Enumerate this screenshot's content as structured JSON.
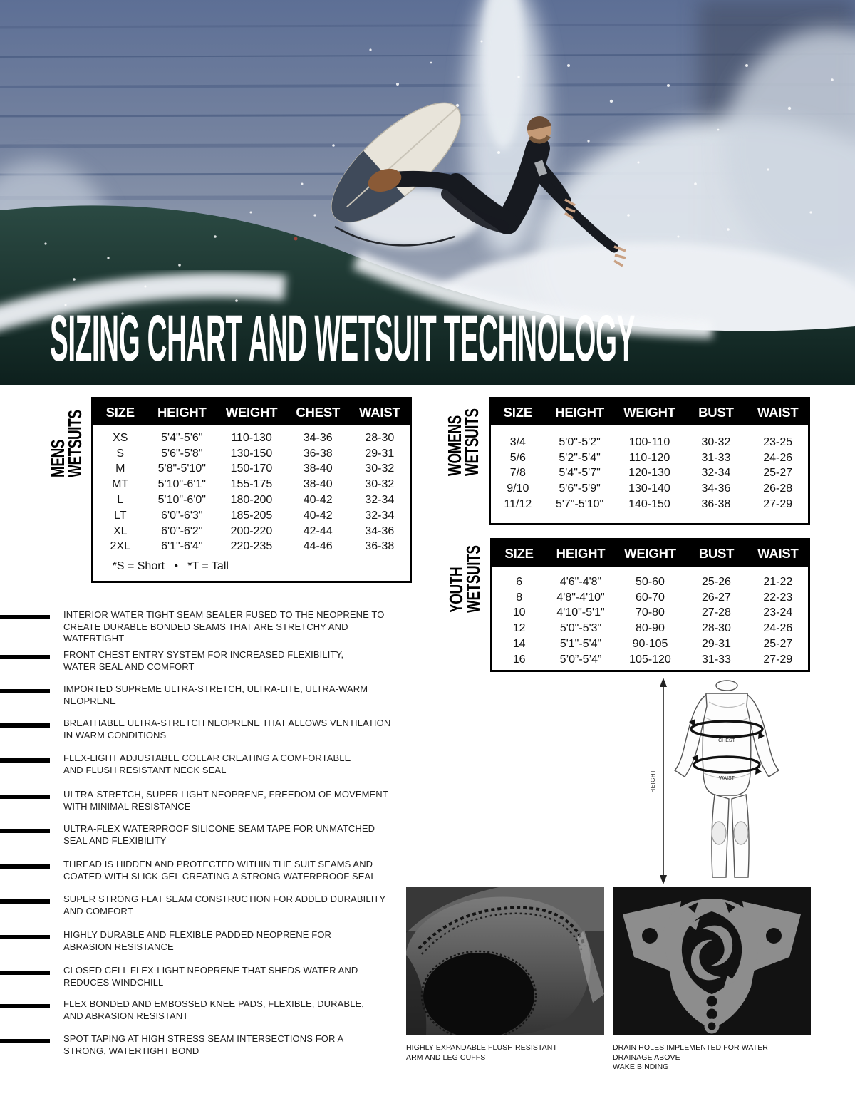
{
  "title": "SIZING CHART AND WETSUIT TECHNOLOGY",
  "colors": {
    "table_header_bg": "#000000",
    "table_header_text": "#ffffff",
    "table_border": "#000000",
    "feature_bar": "#000000",
    "ocean_blue": "#74829f",
    "wave_dark_teal": "#16302c",
    "spray_white": "#e8ecf0",
    "wetsuit_black": "#171a20",
    "logo_gray": "#8d8d8d"
  },
  "tables": {
    "mens": {
      "label": "MENS\nWETSUITS",
      "columns": [
        "SIZE",
        "HEIGHT",
        "WEIGHT",
        "CHEST",
        "WAIST"
      ],
      "rows": [
        [
          "XS",
          "5'4\"-5'6\"",
          "110-130",
          "34-36",
          "28-30"
        ],
        [
          "S",
          "5'6\"-5'8\"",
          "130-150",
          "36-38",
          "29-31"
        ],
        [
          "M",
          "5'8\"-5'10\"",
          "150-170",
          "38-40",
          "30-32"
        ],
        [
          "MT",
          "5'10\"-6'1\"",
          "155-175",
          "38-40",
          "30-32"
        ],
        [
          "L",
          "5'10\"-6'0\"",
          "180-200",
          "40-42",
          "32-34"
        ],
        [
          "LT",
          "6'0\"-6'3\"",
          "185-205",
          "40-42",
          "32-34"
        ],
        [
          "XL",
          "6'0\"-6'2\"",
          "200-220",
          "42-44",
          "34-36"
        ],
        [
          "2XL",
          "6'1\"-6'4\"",
          "220-235",
          "44-46",
          "36-38"
        ]
      ],
      "footnote": "*S = Short   •   *T = Tall"
    },
    "womens": {
      "label": "WOMENS\nWETSUITS",
      "columns": [
        "SIZE",
        "HEIGHT",
        "WEIGHT",
        "BUST",
        "WAIST"
      ],
      "rows": [
        [
          "3/4",
          "5'0\"-5'2\"",
          "100-110",
          "30-32",
          "23-25"
        ],
        [
          "5/6",
          "5'2\"-5'4\"",
          "110-120",
          "31-33",
          "24-26"
        ],
        [
          "7/8",
          "5'4\"-5'7\"",
          "120-130",
          "32-34",
          "25-27"
        ],
        [
          "9/10",
          "5'6\"-5'9\"",
          "130-140",
          "34-36",
          "26-28"
        ],
        [
          "11/12",
          "5'7\"-5'10\"",
          "140-150",
          "36-38",
          "27-29"
        ]
      ]
    },
    "youth": {
      "label": "YOUTH\nWETSUITS",
      "columns": [
        "SIZE",
        "HEIGHT",
        "WEIGHT",
        "BUST",
        "WAIST"
      ],
      "rows": [
        [
          "6",
          "4'6\"-4'8\"",
          "50-60",
          "25-26",
          "21-22"
        ],
        [
          "8",
          "4'8\"-4'10\"",
          "60-70",
          "26-27",
          "22-23"
        ],
        [
          "10",
          "4'10\"-5'1\"",
          "70-80",
          "27-28",
          "23-24"
        ],
        [
          "12",
          "5'0\"-5'3\"",
          "80-90",
          "28-30",
          "24-26"
        ],
        [
          "14",
          "5'1\"-5'4\"",
          "90-105",
          "29-31",
          "25-27"
        ],
        [
          "16",
          "5’0”-5’4”",
          "105-120",
          "31-33",
          "27-29"
        ]
      ]
    }
  },
  "features": [
    "INTERIOR WATER TIGHT SEAM SEALER FUSED TO THE NEOPRENE TO\nCREATE DURABLE BONDED SEAMS THAT ARE STRETCHY AND WATERTIGHT",
    "FRONT CHEST ENTRY SYSTEM FOR INCREASED FLEXIBILITY,\nWATER SEAL AND COMFORT",
    "IMPORTED SUPREME ULTRA-STRETCH, ULTRA-LITE, ULTRA-WARM NEOPRENE",
    "BREATHABLE ULTRA-STRETCH NEOPRENE THAT ALLOWS VENTILATION\nIN WARM CONDITIONS",
    "FLEX-LIGHT ADJUSTABLE COLLAR CREATING A COMFORTABLE\nAND FLUSH RESISTANT NECK SEAL",
    "ULTRA-STRETCH, SUPER LIGHT NEOPRENE, FREEDOM OF MOVEMENT\nWITH MINIMAL RESISTANCE",
    "ULTRA-FLEX WATERPROOF SILICONE SEAM TAPE FOR UNMATCHED\nSEAL AND FLEXIBILITY",
    "THREAD IS HIDDEN AND PROTECTED WITHIN THE SUIT SEAMS AND\nCOATED WITH SLICK-GEL CREATING A STRONG WATERPROOF SEAL",
    "SUPER STRONG FLAT SEAM CONSTRUCTION FOR ADDED DURABILITY\nAND COMFORT",
    "HIGHLY DURABLE AND FLEXIBLE PADDED NEOPRENE FOR\nABRASION RESISTANCE",
    "CLOSED CELL FLEX-LIGHT NEOPRENE THAT SHEDS WATER AND\nREDUCES WINDCHILL",
    "FLEX BONDED AND EMBOSSED KNEE PADS, FLEXIBLE, DURABLE,\nAND ABRASION RESISTANT",
    "SPOT TAPING AT HIGH STRESS SEAM INTERSECTIONS FOR A\nSTRONG, WATERTIGHT BOND"
  ],
  "diagram": {
    "height_label": "HEIGHT",
    "chest_label": "CHEST",
    "waist_label": "WAIST"
  },
  "captions": {
    "cuff": "HIGHLY EXPANDABLE FLUSH RESISTANT\nARM AND LEG CUFFS",
    "drain": "DRAIN HOLES IMPLEMENTED FOR WATER DRAINAGE ABOVE\nWAKE BINDING"
  }
}
